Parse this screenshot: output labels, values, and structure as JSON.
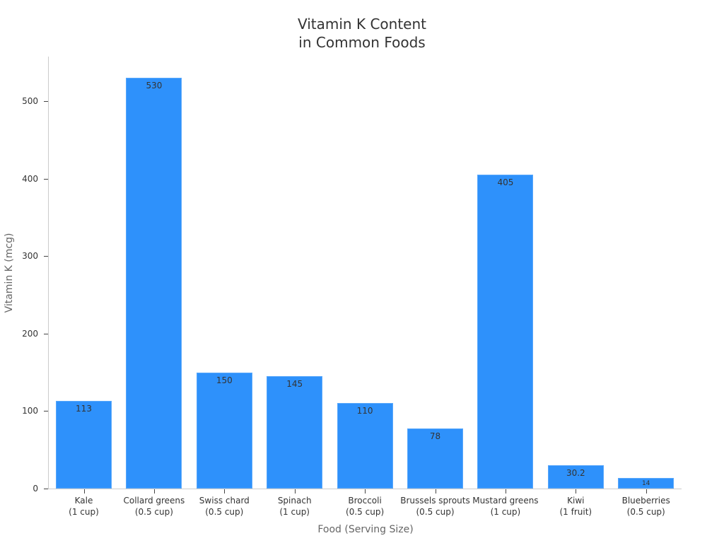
{
  "chart_data": {
    "type": "bar",
    "title": "Vitamin K Content\nin Common Foods",
    "title_lines": [
      "Vitamin K Content",
      "in Common Foods"
    ],
    "xlabel": "Food (Serving Size)",
    "ylabel": "Vitamin K (mcg)",
    "categories": [
      {
        "name": "Kale",
        "serving": "(1 cup)"
      },
      {
        "name": "Collard greens",
        "serving": "(0.5 cup)"
      },
      {
        "name": "Swiss chard",
        "serving": "(0.5 cup)"
      },
      {
        "name": "Spinach",
        "serving": "(1 cup)"
      },
      {
        "name": "Broccoli",
        "serving": "(0.5 cup)"
      },
      {
        "name": "Brussels sprouts",
        "serving": "(0.5 cup)"
      },
      {
        "name": "Mustard greens",
        "serving": "(1 cup)"
      },
      {
        "name": "Kiwi",
        "serving": "(1 fruit)"
      },
      {
        "name": "Blueberries",
        "serving": "(0.5 cup)"
      }
    ],
    "values": [
      113,
      530,
      150,
      145,
      110,
      78,
      405,
      30.2,
      14
    ],
    "value_labels": [
      "113",
      "530",
      "150",
      "145",
      "110",
      "78",
      "405",
      "30.2",
      "14"
    ],
    "yticks": [
      0,
      100,
      200,
      300,
      400,
      500
    ],
    "ytick_labels": [
      "0",
      "100",
      "200",
      "300",
      "400",
      "500"
    ],
    "ylim": [
      0,
      558
    ],
    "grid": false,
    "legend": null,
    "bar_color": "#2e91fb"
  }
}
